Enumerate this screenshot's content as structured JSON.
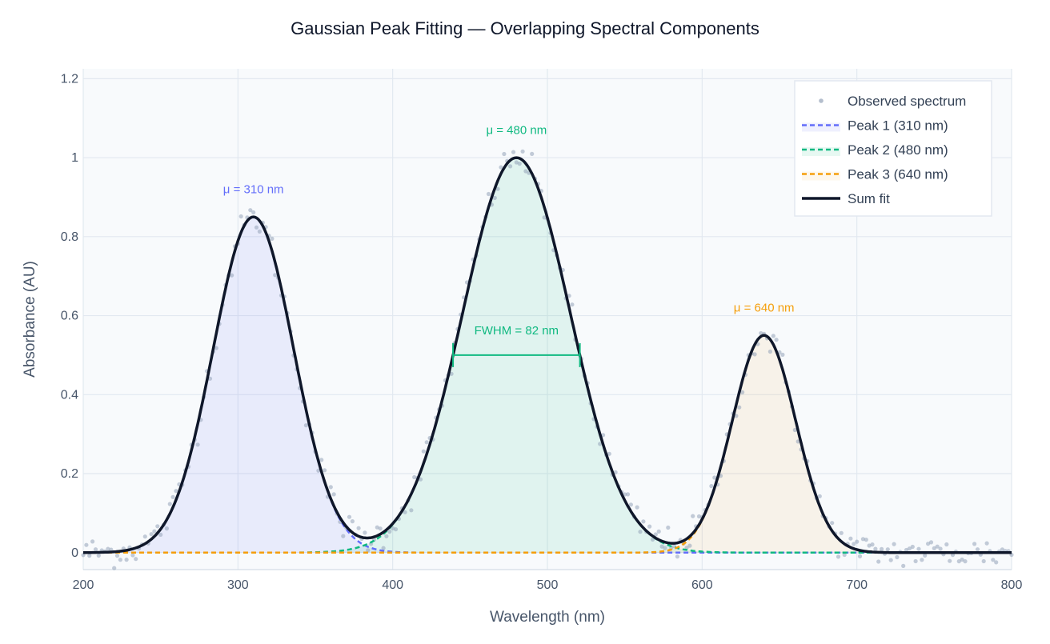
{
  "chart_data": {
    "type": "line",
    "title": "Gaussian Peak Fitting — Overlapping Spectral Components",
    "xlabel": "Wavelength (nm)",
    "ylabel": "Absorbance (AU)",
    "xlim": [
      200,
      800
    ],
    "ylim": [
      -0.043,
      1.225
    ],
    "xticks": [
      200,
      300,
      400,
      500,
      600,
      700,
      800
    ],
    "xtick_labels": [
      "200",
      "300",
      "400",
      "500",
      "600",
      "700",
      "800"
    ],
    "yticks": [
      0,
      0.2,
      0.4,
      0.6,
      0.8,
      1,
      1.2
    ],
    "ytick_labels": [
      "0",
      "0.2",
      "0.4",
      "0.6",
      "0.8",
      "1",
      "1.2"
    ],
    "grid": true,
    "legend_position": "top-right",
    "observed": {
      "name": "Observed spectrum",
      "x_step": 2,
      "noise_sd": 0.02,
      "color": "#94a3b8"
    },
    "peaks": [
      {
        "name": "Peak 1 (310 nm)",
        "mu": 310,
        "amplitude": 0.85,
        "sigma": 26,
        "color": "#636efa",
        "fill": "rgba(99,110,250,0.10)",
        "annotation": "μ = 310 nm",
        "annotation_y": 0.92
      },
      {
        "name": "Peak 2 (480 nm)",
        "mu": 480,
        "amplitude": 1.0,
        "sigma": 34.8,
        "color": "#10b981",
        "fill": "rgba(16,185,129,0.10)",
        "annotation": "μ = 480 nm",
        "annotation_y": 1.07
      },
      {
        "name": "Peak 3 (640 nm)",
        "mu": 640,
        "amplitude": 0.55,
        "sigma": 20.5,
        "color": "#f59e0b",
        "fill": "rgba(245,158,11,0.08)",
        "annotation": "μ = 640 nm",
        "annotation_y": 0.62
      }
    ],
    "sum_fit": {
      "name": "Sum fit",
      "color": "#0f172a"
    },
    "fwhm": {
      "label": "FWHM = 82 nm",
      "x0": 439,
      "x1": 521,
      "y": 0.5,
      "color": "#10b981"
    }
  }
}
